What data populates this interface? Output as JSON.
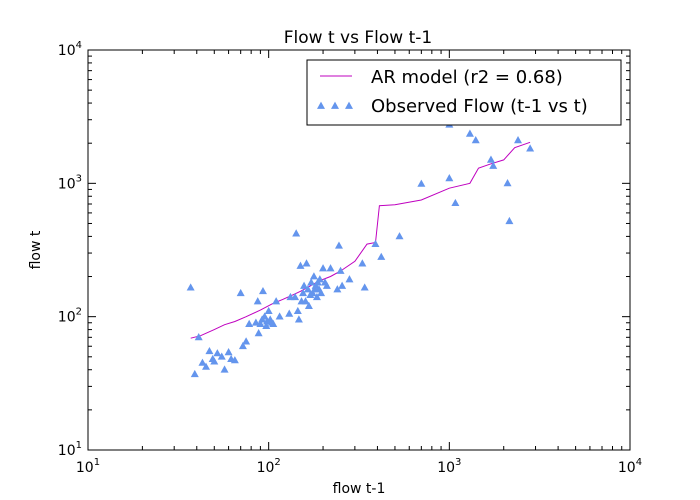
{
  "chart_data": {
    "type": "scatter",
    "title": "Flow t vs Flow t-1",
    "xlabel": "flow t-1",
    "ylabel": "flow t",
    "xscale": "log",
    "yscale": "log",
    "xlim": [
      10,
      10000
    ],
    "ylim": [
      10,
      10000
    ],
    "x_ticks": [
      {
        "base": "10",
        "exp": "1",
        "value": 10
      },
      {
        "base": "10",
        "exp": "2",
        "value": 100
      },
      {
        "base": "10",
        "exp": "3",
        "value": 1000
      },
      {
        "base": "10",
        "exp": "4",
        "value": 10000
      }
    ],
    "y_ticks": [
      {
        "base": "10",
        "exp": "1",
        "value": 10
      },
      {
        "base": "10",
        "exp": "2",
        "value": 100
      },
      {
        "base": "10",
        "exp": "3",
        "value": 1000
      },
      {
        "base": "10",
        "exp": "4",
        "value": 10000
      }
    ],
    "grid": false,
    "legend_position": "top-right",
    "series": [
      {
        "name": "AR model (r2 = 0.68)",
        "kind": "line",
        "color": "#bf00bf",
        "points": [
          [
            37,
            69
          ],
          [
            42,
            72
          ],
          [
            50,
            80
          ],
          [
            57,
            87
          ],
          [
            65,
            92
          ],
          [
            75,
            100
          ],
          [
            90,
            112
          ],
          [
            105,
            125
          ],
          [
            120,
            135
          ],
          [
            135,
            145
          ],
          [
            150,
            155
          ],
          [
            170,
            170
          ],
          [
            190,
            185
          ],
          [
            220,
            200
          ],
          [
            250,
            220
          ],
          [
            300,
            260
          ],
          [
            350,
            350
          ],
          [
            390,
            360
          ],
          [
            410,
            680
          ],
          [
            500,
            690
          ],
          [
            700,
            750
          ],
          [
            1000,
            920
          ],
          [
            1300,
            1000
          ],
          [
            1450,
            1300
          ],
          [
            1700,
            1400
          ],
          [
            2000,
            1500
          ],
          [
            2300,
            1850
          ],
          [
            2800,
            2030
          ]
        ]
      },
      {
        "name": "Observed Flow (t-1 vs t)",
        "kind": "scatter",
        "marker": "triangle",
        "color": "#6495ed",
        "points": [
          [
            37,
            165
          ],
          [
            39,
            37
          ],
          [
            41,
            70
          ],
          [
            43,
            45
          ],
          [
            45,
            42
          ],
          [
            47,
            55
          ],
          [
            49,
            48
          ],
          [
            50,
            46
          ],
          [
            52,
            53
          ],
          [
            55,
            50
          ],
          [
            57,
            40
          ],
          [
            60,
            54
          ],
          [
            62,
            48
          ],
          [
            65,
            47
          ],
          [
            70,
            150
          ],
          [
            72,
            60
          ],
          [
            75,
            65
          ],
          [
            78,
            88
          ],
          [
            85,
            90
          ],
          [
            87,
            130
          ],
          [
            88,
            75
          ],
          [
            90,
            88
          ],
          [
            92,
            95
          ],
          [
            93,
            155
          ],
          [
            95,
            100
          ],
          [
            97,
            85
          ],
          [
            98,
            92
          ],
          [
            100,
            110
          ],
          [
            102,
            95
          ],
          [
            104,
            90
          ],
          [
            106,
            88
          ],
          [
            110,
            130
          ],
          [
            115,
            100
          ],
          [
            130,
            105
          ],
          [
            132,
            140
          ],
          [
            140,
            140
          ],
          [
            142,
            420
          ],
          [
            145,
            110
          ],
          [
            147,
            95
          ],
          [
            150,
            240
          ],
          [
            152,
            130
          ],
          [
            155,
            150
          ],
          [
            157,
            170
          ],
          [
            160,
            130
          ],
          [
            162,
            250
          ],
          [
            165,
            160
          ],
          [
            167,
            120
          ],
          [
            170,
            145
          ],
          [
            172,
            180
          ],
          [
            175,
            150
          ],
          [
            178,
            200
          ],
          [
            180,
            160
          ],
          [
            182,
            170
          ],
          [
            185,
            140
          ],
          [
            187,
            180
          ],
          [
            190,
            160
          ],
          [
            192,
            190
          ],
          [
            195,
            150
          ],
          [
            200,
            230
          ],
          [
            205,
            180
          ],
          [
            210,
            170
          ],
          [
            220,
            230
          ],
          [
            240,
            160
          ],
          [
            245,
            340
          ],
          [
            250,
            220
          ],
          [
            255,
            170
          ],
          [
            280,
            190
          ],
          [
            330,
            250
          ],
          [
            340,
            165
          ],
          [
            390,
            350
          ],
          [
            420,
            280
          ],
          [
            530,
            400
          ],
          [
            700,
            990
          ],
          [
            1000,
            2750
          ],
          [
            1000,
            1090
          ],
          [
            1080,
            710
          ],
          [
            1300,
            2350
          ],
          [
            1400,
            2100
          ],
          [
            1700,
            1500
          ],
          [
            1750,
            1350
          ],
          [
            2100,
            1000
          ],
          [
            2150,
            520
          ],
          [
            2400,
            2100
          ],
          [
            2800,
            1820
          ]
        ]
      }
    ]
  }
}
